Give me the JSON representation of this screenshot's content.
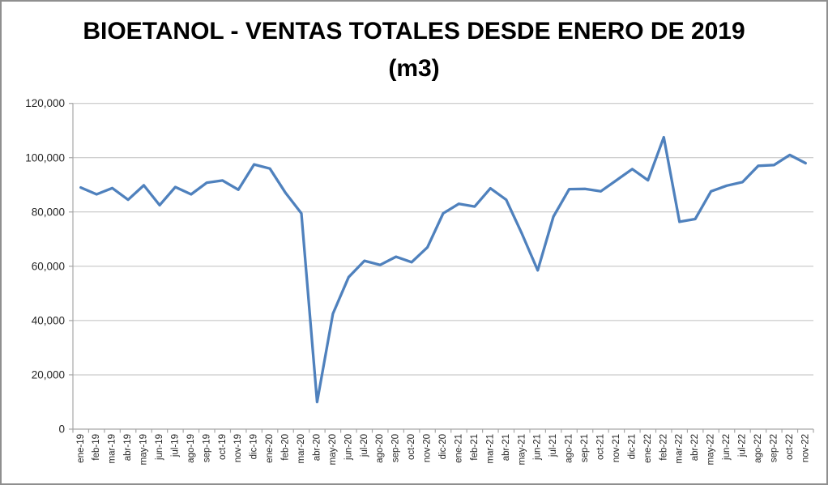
{
  "header": {
    "title_line1": "BIOETANOL - VENTAS TOTALES DESDE ENERO DE 2019",
    "title_line2": "(m3)"
  },
  "colors": {
    "series_line": "#4F81BD",
    "gridline": "#BFBFBF",
    "axis_line": "#A6A6A6",
    "label_text": "#262626",
    "title_text": "#000000",
    "outer_border": "#8F8F8F"
  },
  "chart_data": {
    "type": "line",
    "title": "BIOETANOL - VENTAS TOTALES DESDE ENERO DE 2019 (m3)",
    "unit": "m3",
    "xlabel": "",
    "ylabel": "",
    "ylim": [
      0,
      120000
    ],
    "ytick_step": 20000,
    "ytick_labels": [
      "0",
      "20,000",
      "40,000",
      "60,000",
      "80,000",
      "100,000",
      "120,000"
    ],
    "grid": true,
    "legend_position": "none",
    "categories": [
      "ene-19",
      "feb-19",
      "mar-19",
      "abr-19",
      "may-19",
      "jun-19",
      "jul-19",
      "ago-19",
      "sep-19",
      "oct-19",
      "nov-19",
      "dic-19",
      "ene-20",
      "feb-20",
      "mar-20",
      "abr-20",
      "may-20",
      "jun-20",
      "jul-20",
      "ago-20",
      "sep-20",
      "oct-20",
      "nov-20",
      "dic-20",
      "ene-21",
      "feb-21",
      "mar-21",
      "abr-21",
      "may-21",
      "jun-21",
      "jul-21",
      "ago-21",
      "sep-21",
      "oct-21",
      "nov-21",
      "dic-21",
      "ene-22",
      "feb-22",
      "mar-22",
      "abr-22",
      "may-22",
      "jun-22",
      "jul-22",
      "ago-22",
      "sep-22",
      "oct-22",
      "nov-22"
    ],
    "series": [
      {
        "name": "Ventas totales de bioetanol (m3)",
        "color": "#4F81BD",
        "values": [
          89000,
          86500,
          88800,
          84500,
          89800,
          82500,
          89200,
          86500,
          90800,
          91600,
          88200,
          97500,
          96000,
          87000,
          79500,
          10000,
          42500,
          56000,
          62000,
          60500,
          63500,
          61500,
          67000,
          79500,
          83000,
          82000,
          88700,
          84500,
          72000,
          58500,
          78300,
          88400,
          88500,
          87600,
          91700,
          95800,
          91700,
          107500,
          76400,
          77400,
          87600,
          89700,
          91000,
          97000,
          97300,
          101000,
          98000
        ]
      }
    ]
  }
}
